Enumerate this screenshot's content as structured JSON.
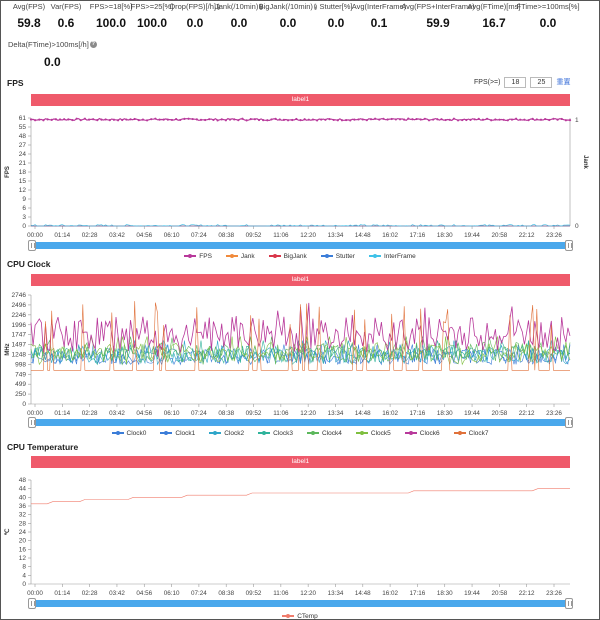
{
  "stats": [
    {
      "label": "Avg(FPS)",
      "value": "59.8",
      "help": false
    },
    {
      "label": "Var(FPS)",
      "value": "0.6",
      "help": false
    },
    {
      "label": "FPS>=18[%]",
      "value": "100.0",
      "help": false
    },
    {
      "label": "FPS>=25[%]",
      "value": "100.0",
      "help": false
    },
    {
      "label": "Drop(FPS)[/h]",
      "value": "0.0",
      "help": true
    },
    {
      "label": "Jank(/10min)",
      "value": "0.0",
      "help": true
    },
    {
      "label": "BigJank(/10min)",
      "value": "0.0",
      "help": true
    },
    {
      "label": "Stutter[%]",
      "value": "0.0",
      "help": false
    },
    {
      "label": "Avg(InterFrame)",
      "value": "0.1",
      "help": false
    },
    {
      "label": "Avg(FPS+InterFrame)",
      "value": "59.9",
      "help": false
    },
    {
      "label": "Avg(FTime)[ms]",
      "value": "16.7",
      "help": false
    },
    {
      "label": "FTime>=100ms[%]",
      "value": "0.0",
      "help": false
    },
    {
      "label": "Delta(FTime)>100ms[/h]",
      "value": "0.0",
      "help": true
    }
  ],
  "fps_section": {
    "title": "FPS",
    "controls_label": "FPS(>=)",
    "threshold_1": "18",
    "threshold_2": "25",
    "reset_label": "重置",
    "band_label": "label1"
  },
  "cpu_clock_section": {
    "title": "CPU Clock",
    "band_label": "label1"
  },
  "cpu_temp_section": {
    "title": "CPU Temperature",
    "band_label": "label1"
  },
  "time_ticks": [
    "00:00",
    "01:14",
    "02:28",
    "03:42",
    "04:56",
    "06:10",
    "07:24",
    "08:38",
    "09:52",
    "11:06",
    "12:20",
    "13:34",
    "14:48",
    "16:02",
    "17:16",
    "18:30",
    "19:44",
    "20:58",
    "22:12",
    "23:26"
  ],
  "colors": {
    "fps": "#b8399b",
    "jank": "#f08a3c",
    "bigjank": "#d9364a",
    "stutter": "#3b7dd8",
    "interframe": "#40c2e8",
    "clock0": "#3b7dd8",
    "clock1": "#3b7dd8",
    "clock2": "#2fa6c9",
    "clock3": "#2fb39b",
    "clock4": "#5cb85c",
    "clock5": "#7fbf3f",
    "clock6": "#b8399b",
    "clock7": "#e0713a",
    "ctemp": "#f07c6c",
    "label_band": "#ef5a6b",
    "slider": "#4aa8ec"
  },
  "chart_data": [
    {
      "type": "line",
      "title": "FPS",
      "ylabel": "FPS",
      "y2label": "Jank",
      "yticks": [
        0,
        3,
        6,
        9,
        12,
        15,
        18,
        21,
        24,
        27,
        48,
        55,
        61
      ],
      "y2ticks": [
        0,
        1
      ],
      "ylim": [
        0,
        61
      ],
      "x_range": [
        "00:00",
        "23:59"
      ],
      "legend": [
        "FPS",
        "Jank",
        "BigJank",
        "Stutter",
        "InterFrame"
      ],
      "legend_position": "bottom",
      "series": [
        {
          "name": "FPS",
          "pattern": "constant",
          "base": 60,
          "noise": 0.6,
          "min": 58.5,
          "max": 61
        },
        {
          "name": "Jank",
          "pattern": "constant",
          "base": 0,
          "noise": 0
        },
        {
          "name": "BigJank",
          "pattern": "constant",
          "base": 0,
          "noise": 0
        },
        {
          "name": "Stutter",
          "pattern": "constant",
          "base": 0,
          "noise": 0
        },
        {
          "name": "InterFrame",
          "pattern": "constant",
          "base": 0.1,
          "noise": 0.4,
          "min": 0,
          "max": 1.5
        }
      ]
    },
    {
      "type": "line",
      "title": "CPU Clock",
      "ylabel": "MHz",
      "yticks": [
        0,
        250,
        499,
        749,
        998,
        1248,
        1497,
        1747,
        1996,
        2246,
        2496,
        2746
      ],
      "ylim": [
        0,
        2746
      ],
      "x_range": [
        "00:00",
        "23:59"
      ],
      "legend": [
        "Clock0",
        "Clock1",
        "Clock2",
        "Clock3",
        "Clock4",
        "Clock5",
        "Clock6",
        "Clock7"
      ],
      "legend_position": "bottom",
      "series": [
        {
          "name": "Clock0",
          "pattern": "noisy",
          "base": 1200,
          "noise": 200,
          "min": 998,
          "max": 1500
        },
        {
          "name": "Clock1",
          "pattern": "noisy",
          "base": 1200,
          "noise": 200,
          "min": 998,
          "max": 1500
        },
        {
          "name": "Clock2",
          "pattern": "noisy",
          "base": 1250,
          "noise": 220,
          "min": 998,
          "max": 1600
        },
        {
          "name": "Clock3",
          "pattern": "noisy",
          "base": 1250,
          "noise": 220,
          "min": 998,
          "max": 1600
        },
        {
          "name": "Clock4",
          "pattern": "noisy",
          "base": 1300,
          "noise": 250,
          "min": 998,
          "max": 1700
        },
        {
          "name": "Clock5",
          "pattern": "noisy",
          "base": 1300,
          "noise": 250,
          "min": 998,
          "max": 1700
        },
        {
          "name": "Clock6",
          "pattern": "noisy",
          "base": 1750,
          "noise": 450,
          "min": 998,
          "max": 2600
        },
        {
          "name": "Clock7",
          "pattern": "spiky",
          "base": 850,
          "noise": 0,
          "min": 850,
          "max": 2600
        }
      ]
    },
    {
      "type": "line",
      "title": "CPU Temperature",
      "ylabel": "℃",
      "yticks": [
        0,
        4,
        8,
        12,
        16,
        20,
        24,
        28,
        32,
        36,
        40,
        44,
        48
      ],
      "ylim": [
        0,
        48
      ],
      "x_range": [
        "00:00",
        "23:59"
      ],
      "legend": [
        "CTemp"
      ],
      "legend_position": "bottom",
      "series": [
        {
          "name": "CTemp",
          "points": [
            [
              0,
              37
            ],
            [
              0.03,
              37
            ],
            [
              0.04,
              38
            ],
            [
              0.09,
              38
            ],
            [
              0.1,
              39
            ],
            [
              0.18,
              39
            ],
            [
              0.19,
              40
            ],
            [
              0.28,
              40
            ],
            [
              0.29,
              41
            ],
            [
              0.4,
              41
            ],
            [
              0.41,
              42
            ],
            [
              0.7,
              42
            ],
            [
              0.71,
              43
            ],
            [
              0.93,
              43
            ],
            [
              0.94,
              44
            ],
            [
              1.0,
              44
            ]
          ]
        }
      ]
    }
  ]
}
